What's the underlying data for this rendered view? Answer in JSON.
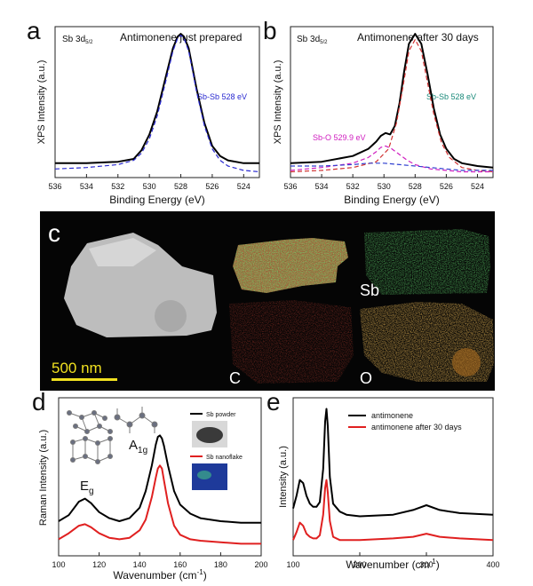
{
  "figure": {
    "panel_letters": [
      "a",
      "b",
      "c",
      "d",
      "e"
    ]
  },
  "chart_data": [
    {
      "panel": "a",
      "type": "line",
      "title": "Antimonene just prepared",
      "element_label": "Sb 3d",
      "element_sub": "5/2",
      "xlabel": "Binding Energy (eV)",
      "ylabel": "XPS Intensity (a.u.)",
      "xlim": [
        536,
        523
      ],
      "x_reversed": true,
      "ylim": [
        0,
        1.05
      ],
      "xticks": [
        536,
        534,
        532,
        530,
        528,
        526,
        524
      ],
      "annotation": "Sb-Sb 528 eV",
      "annotation_color": "#2a2ad0",
      "series": [
        {
          "style": "solid",
          "color": "#000000",
          "x": [
            536,
            534,
            532,
            531,
            530.5,
            530,
            529.5,
            529,
            528.5,
            528.2,
            528,
            527.8,
            527.5,
            527,
            526.5,
            526,
            525.5,
            525,
            524,
            523
          ],
          "y": [
            0.1,
            0.1,
            0.11,
            0.13,
            0.19,
            0.3,
            0.46,
            0.68,
            0.9,
            0.98,
            1.0,
            0.98,
            0.9,
            0.62,
            0.38,
            0.22,
            0.15,
            0.12,
            0.1,
            0.1
          ]
        },
        {
          "style": "dashed",
          "color": "#2a2ad0",
          "x": [
            536,
            534,
            532,
            531,
            530.5,
            530,
            529.5,
            529,
            528.5,
            528.2,
            528,
            527.8,
            527.5,
            527,
            526.5,
            526,
            525.5,
            525,
            524,
            523
          ],
          "y": [
            0.06,
            0.07,
            0.09,
            0.12,
            0.17,
            0.27,
            0.43,
            0.65,
            0.88,
            0.97,
            0.99,
            0.97,
            0.88,
            0.6,
            0.36,
            0.2,
            0.12,
            0.08,
            0.05,
            0.04
          ]
        }
      ]
    },
    {
      "panel": "b",
      "type": "line",
      "title": "Antimonene after 30 days",
      "element_label": "Sb 3d",
      "element_sub": "5/2",
      "xlabel": "Binding Energy (eV)",
      "ylabel": "XPS Intensity (a.u.)",
      "xlim": [
        536,
        523
      ],
      "x_reversed": true,
      "ylim": [
        0,
        1.05
      ],
      "xticks": [
        536,
        534,
        532,
        530,
        528,
        526,
        524
      ],
      "annotations": [
        {
          "text": "Sb-Sb 528 eV",
          "color": "#1a8a7a"
        },
        {
          "text": "Sb-O 529.9 eV",
          "color": "#d020c0"
        }
      ],
      "series": [
        {
          "style": "solid",
          "color": "#000000",
          "x": [
            536,
            534,
            532,
            531,
            530.5,
            530.2,
            529.9,
            529.6,
            529.3,
            529,
            528.7,
            528.4,
            528,
            527.6,
            527.2,
            526.8,
            526.4,
            526,
            525.5,
            525,
            524,
            523
          ],
          "y": [
            0.1,
            0.11,
            0.15,
            0.2,
            0.25,
            0.29,
            0.31,
            0.3,
            0.36,
            0.52,
            0.74,
            0.93,
            1.0,
            0.93,
            0.72,
            0.48,
            0.3,
            0.2,
            0.13,
            0.1,
            0.08,
            0.07
          ]
        },
        {
          "style": "dashed",
          "color": "#d03030",
          "x": [
            536,
            534,
            532,
            530.5,
            529.7,
            529.2,
            528.8,
            528.4,
            528,
            527.6,
            527.2,
            526.8,
            526.3,
            525.8,
            525,
            524,
            523
          ],
          "y": [
            0.04,
            0.05,
            0.07,
            0.11,
            0.2,
            0.38,
            0.62,
            0.88,
            0.96,
            0.88,
            0.66,
            0.44,
            0.24,
            0.14,
            0.07,
            0.05,
            0.04
          ]
        },
        {
          "style": "dashed",
          "color": "#d020c0",
          "x": [
            536,
            534,
            532,
            531,
            530.5,
            530.2,
            529.9,
            529.5,
            529,
            528.5,
            528,
            527,
            526,
            525,
            524,
            523
          ],
          "y": [
            0.05,
            0.07,
            0.1,
            0.14,
            0.18,
            0.21,
            0.22,
            0.2,
            0.16,
            0.12,
            0.09,
            0.06,
            0.05,
            0.04,
            0.04,
            0.04
          ]
        },
        {
          "style": "dashed",
          "color": "#3040d0",
          "x": [
            536,
            534,
            532,
            531,
            530,
            529,
            528,
            527,
            526,
            525,
            524,
            523
          ],
          "y": [
            0.08,
            0.08,
            0.09,
            0.1,
            0.1,
            0.09,
            0.08,
            0.07,
            0.06,
            0.05,
            0.05,
            0.05
          ]
        }
      ]
    },
    {
      "panel": "c",
      "type": "image",
      "scale_bar": "500 nm",
      "map_labels": [
        "Sb",
        "C",
        "O"
      ]
    },
    {
      "panel": "d",
      "type": "line",
      "xlabel": "Wavenumber (cm",
      "xlabel_sup": "-1",
      "xlabel_end": ")",
      "ylabel": "Raman Intensity (a.u.)",
      "xlim": [
        100,
        200
      ],
      "xticks": [
        100,
        120,
        140,
        160,
        180,
        200
      ],
      "mode_labels": [
        {
          "main": "E",
          "sub": "g"
        },
        {
          "main": "A",
          "sub": "1g"
        }
      ],
      "legend": [
        {
          "name": "Sb powder",
          "color": "#000000"
        },
        {
          "name": "Sb nanoflake",
          "color": "#e02020"
        }
      ],
      "series": [
        {
          "name": "Sb powder",
          "color": "#000000",
          "x": [
            100,
            105,
            110,
            113,
            116,
            120,
            125,
            130,
            135,
            140,
            143,
            146,
            148,
            149,
            150,
            151,
            152,
            154,
            157,
            160,
            165,
            170,
            180,
            190,
            200
          ],
          "y": [
            0.18,
            0.22,
            0.31,
            0.33,
            0.3,
            0.24,
            0.2,
            0.18,
            0.2,
            0.27,
            0.38,
            0.55,
            0.69,
            0.74,
            0.75,
            0.73,
            0.68,
            0.55,
            0.38,
            0.29,
            0.23,
            0.2,
            0.18,
            0.17,
            0.17
          ]
        },
        {
          "name": "Sb nanoflake",
          "color": "#e02020",
          "x": [
            100,
            105,
            110,
            113,
            116,
            120,
            125,
            130,
            135,
            140,
            143,
            146,
            148,
            149,
            150,
            151,
            152,
            154,
            157,
            160,
            165,
            170,
            180,
            190,
            200
          ],
          "y": [
            0.06,
            0.1,
            0.15,
            0.16,
            0.14,
            0.1,
            0.07,
            0.06,
            0.07,
            0.12,
            0.19,
            0.34,
            0.47,
            0.53,
            0.55,
            0.53,
            0.45,
            0.3,
            0.15,
            0.09,
            0.06,
            0.05,
            0.04,
            0.03,
            0.03
          ]
        }
      ]
    },
    {
      "panel": "e",
      "type": "line",
      "xlabel": "Wavenumber (cm",
      "xlabel_sup": "-1",
      "xlabel_end": ")",
      "ylabel": "Intensity (a.u.)",
      "xlim": [
        100,
        400
      ],
      "xticks": [
        100,
        200,
        300,
        400
      ],
      "legend": [
        {
          "name": "antimonene",
          "color": "#000000"
        },
        {
          "name": "antimonene after 30 days",
          "color": "#e02020"
        }
      ],
      "series": [
        {
          "name": "antimonene",
          "color": "#000000",
          "x": [
            100,
            105,
            110,
            115,
            120,
            125,
            130,
            135,
            140,
            145,
            148,
            150,
            152,
            155,
            160,
            170,
            180,
            200,
            250,
            280,
            300,
            320,
            350,
            400
          ],
          "y": [
            0.3,
            0.38,
            0.48,
            0.46,
            0.38,
            0.33,
            0.31,
            0.31,
            0.34,
            0.55,
            0.85,
            0.93,
            0.82,
            0.5,
            0.33,
            0.28,
            0.26,
            0.25,
            0.26,
            0.29,
            0.32,
            0.29,
            0.27,
            0.26
          ]
        },
        {
          "name": "antimonene after 30 days",
          "color": "#e02020",
          "x": [
            100,
            105,
            110,
            115,
            120,
            125,
            130,
            135,
            140,
            145,
            148,
            150,
            152,
            155,
            160,
            170,
            180,
            200,
            250,
            280,
            300,
            320,
            350,
            400
          ],
          "y": [
            0.1,
            0.15,
            0.21,
            0.19,
            0.14,
            0.12,
            0.11,
            0.11,
            0.13,
            0.26,
            0.43,
            0.48,
            0.4,
            0.22,
            0.12,
            0.1,
            0.1,
            0.1,
            0.11,
            0.12,
            0.14,
            0.12,
            0.11,
            0.1
          ]
        }
      ]
    }
  ]
}
